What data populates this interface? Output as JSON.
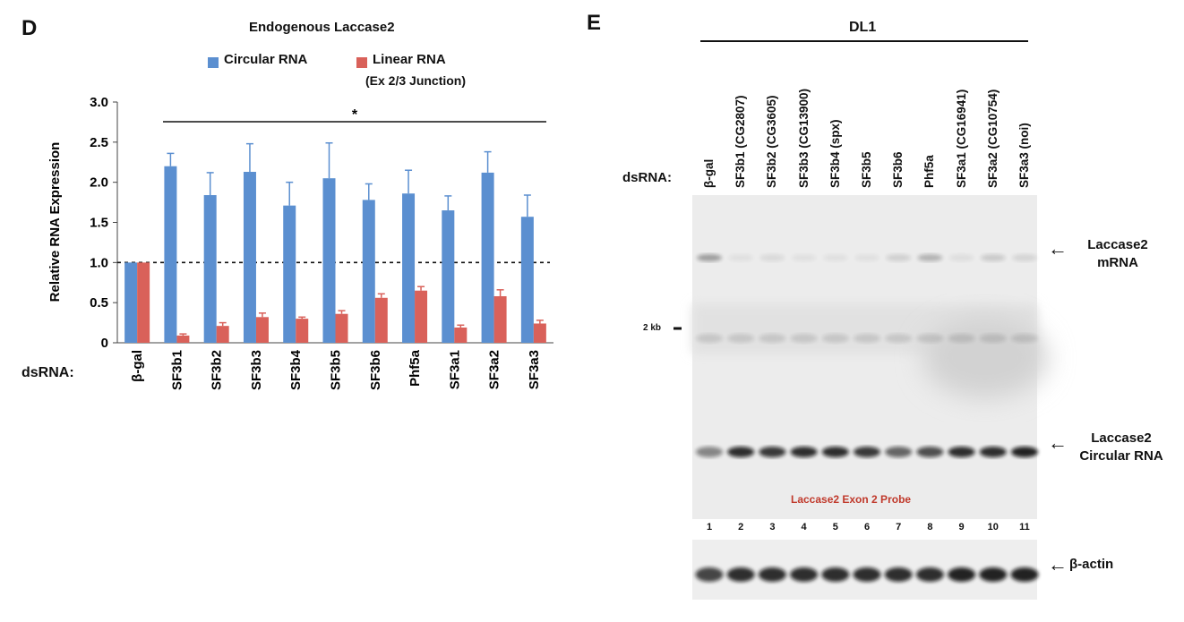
{
  "panel_d": {
    "letter": "D",
    "dsrna_label": "dsRNA:",
    "significance_marker": "*"
  },
  "panel_e": {
    "letter": "E",
    "cell_line": "DL1",
    "dsrna_label": "dsRNA:",
    "lanes": [
      "β-gal",
      "SF3b1 (CG2807)",
      "SF3b2 (CG3605)",
      "SF3b3 (CG13900)",
      "SF3b4 (spx)",
      "SF3b5",
      "SF3b6",
      "Phf5a",
      "SF3a1 (CG16941)",
      "SF3a2 (CG10754)",
      "SF3a3 (noi)"
    ],
    "lane_numbers": [
      "1",
      "2",
      "3",
      "4",
      "5",
      "6",
      "7",
      "8",
      "9",
      "10",
      "11"
    ],
    "marker_label": "2 kb",
    "probe_label": "Laccase2 Exon 2 Probe",
    "mrna_label_1": "Laccase2",
    "mrna_label_2": "mRNA",
    "circ_label_1": "Laccase2",
    "circ_label_2": "Circular RNA",
    "actin_label": "β-actin",
    "arrow": "←",
    "probe_color": "#c0392b"
  },
  "chart_data": {
    "type": "bar",
    "title": "Endogenous Laccase2",
    "ylabel": "Relative RNA Expression",
    "xlabel": "",
    "ylim": [
      0,
      3.0
    ],
    "yticks": [
      "0",
      "0.5",
      "1.0",
      "1.5",
      "2.0",
      "2.5",
      "3.0"
    ],
    "reference_line": 1.0,
    "categories": [
      "β-gal",
      "SF3b1",
      "SF3b2",
      "SF3b3",
      "SF3b4",
      "SF3b5",
      "SF3b6",
      "Phf5a",
      "SF3a1",
      "SF3a2",
      "SF3a3"
    ],
    "series": [
      {
        "name": "Circular RNA",
        "color": "#5b8fd0",
        "values": [
          1.0,
          2.2,
          1.84,
          2.13,
          1.71,
          2.05,
          1.78,
          1.86,
          1.65,
          2.12,
          1.57
        ],
        "errors": [
          0.0,
          0.16,
          0.28,
          0.35,
          0.29,
          0.44,
          0.2,
          0.29,
          0.18,
          0.26,
          0.27
        ]
      },
      {
        "name": "Linear RNA",
        "name_line2": "(Ex 2/3 Junction)",
        "color": "#d9615a",
        "values": [
          1.0,
          0.09,
          0.21,
          0.32,
          0.3,
          0.36,
          0.56,
          0.65,
          0.19,
          0.58,
          0.24
        ],
        "errors": [
          0.0,
          0.02,
          0.04,
          0.05,
          0.02,
          0.04,
          0.05,
          0.05,
          0.03,
          0.08,
          0.04
        ]
      }
    ]
  }
}
